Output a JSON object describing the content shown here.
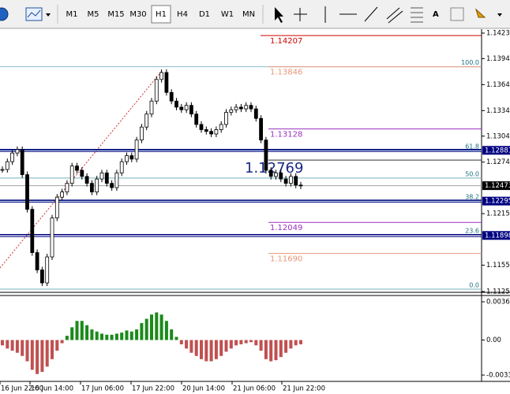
{
  "toolbar": {
    "timeframes": [
      "M1",
      "M5",
      "M15",
      "M30",
      "H1",
      "H4",
      "D1",
      "W1",
      "MN"
    ],
    "active": 4
  },
  "price_axis": {
    "ylim": [
      1.1125,
      1.14235
    ],
    "ticks": [
      1.14235,
      {
        "value": 1.1394,
        "label": "1.13940"
      },
      {
        "value": 1.1364,
        "label": "1.13640"
      },
      {
        "value": 1.1334,
        "label": "1.13340"
      },
      1.13045,
      1.12745,
      {
        "value": 1.1215,
        "label": "1.12150"
      },
      1.11555,
      {
        "value": 1.1125,
        "label": "1.11250"
      }
    ],
    "markers": [
      {
        "price": 1.12881,
        "style": "level"
      },
      {
        "price": 1.12473,
        "style": "bid"
      },
      {
        "price": 1.12295,
        "style": "level"
      },
      {
        "price": 1.11898,
        "style": "level"
      }
    ]
  },
  "levels": [
    {
      "price": 1.14207,
      "color": "#d00000"
    },
    {
      "price": 1.13846,
      "color": "#e8967a"
    },
    {
      "price": 1.13128,
      "color": "#9a30c0"
    },
    {
      "price": 1.12049,
      "color": "#9a30c0"
    },
    {
      "price": {
        "value": 1.1169,
        "label": "1.11690"
      },
      "color": "#e8967a"
    }
  ],
  "fibonacci": {
    "color": "#5fa8b8",
    "levels": [
      {
        "label": "100.0",
        "price": 1.13846
      },
      {
        "label": "61.8",
        "price": 1.12881
      },
      {
        "label": "50.0",
        "price": 1.12561
      },
      {
        "label": "38.2",
        "price": 1.12297
      },
      {
        "label": "23.6",
        "price": 1.11905
      },
      {
        "label": "0.0",
        "price": 1.11278
      }
    ]
  },
  "current_price": 1.12769,
  "closes": [
    1.1266,
    1.1275,
    1.1285,
    1.1289,
    1.126,
    1.122,
    1.117,
    1.115,
    1.1135,
    1.1165,
    1.121,
    1.1234,
    1.124,
    1.125,
    1.127,
    1.1265,
    1.1258,
    1.125,
    1.124,
    1.1255,
    1.1262,
    1.125,
    1.1245,
    1.1262,
    1.1275,
    1.1282,
    1.1278,
    1.13,
    1.1315,
    1.133,
    1.1345,
    1.137,
    1.1378,
    1.1355,
    1.1345,
    1.1338,
    1.1335,
    1.134,
    1.133,
    1.1318,
    1.1312,
    1.131,
    1.1307,
    1.1312,
    1.1318,
    1.1332,
    1.1335,
    1.1338,
    1.1336,
    1.134,
    1.1336,
    1.1325,
    1.13,
    1.1265,
    1.1258,
    1.1262,
    1.1255,
    1.125,
    1.1258,
    1.1248,
    1.1247
  ],
  "macd": {
    "ylim": [
      -0.0033,
      0.0036
    ],
    "ticks": [
      0.0036,
      {
        "value": 0,
        "label": "0.00"
      },
      -0.0033
    ],
    "histogram": [
      -0.0005,
      -0.0008,
      -0.001,
      -0.0012,
      -0.0015,
      -0.002,
      -0.0028,
      -0.0032,
      -0.003,
      -0.0025,
      -0.0018,
      -0.001,
      -0.0003,
      0.0004,
      0.0012,
      0.0018,
      0.0018,
      0.0014,
      0.001,
      0.0008,
      0.0006,
      0.0005,
      0.0005,
      0.0006,
      0.0007,
      0.0009,
      0.0008,
      0.001,
      0.0016,
      0.002,
      0.0024,
      0.0026,
      0.0024,
      0.0018,
      0.001,
      0.0003,
      -0.0004,
      -0.0008,
      -0.0012,
      -0.0015,
      -0.0018,
      -0.002,
      -0.002,
      -0.0018,
      -0.0015,
      -0.0011,
      -0.0008,
      -0.0005,
      -0.0004,
      -0.0003,
      -0.0002,
      -0.0005,
      -0.001,
      -0.0018,
      -0.002,
      -0.0019,
      -0.0016,
      -0.0012,
      -0.0008,
      -0.0005,
      -0.0004
    ],
    "up_color": "#1a8a1a",
    "down_color": "#c05050"
  },
  "time_labels": [
    "16 Jun 22:00",
    "16 Jun 14:00",
    "17 Jun 06:00",
    "17 Jun 22:00",
    "20 Jun 14:00",
    "21 Jun 06:00",
    "21 Jun 22:00"
  ]
}
